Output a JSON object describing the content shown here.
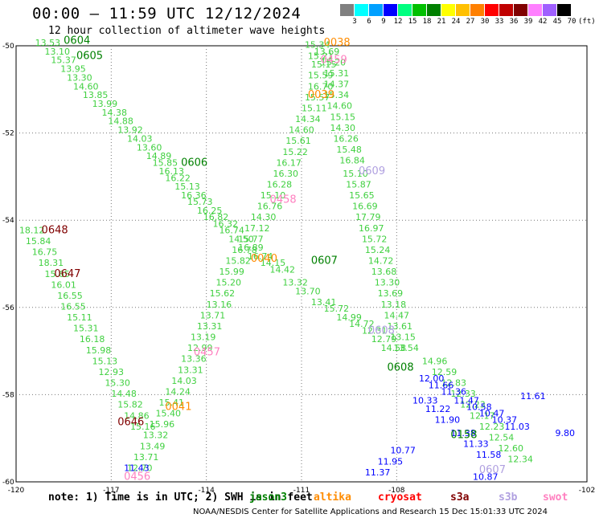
{
  "header": {
    "title": "00:00 – 11:59 UTC 12/12/2024",
    "subtitle": "12 hour collection of altimeter wave heights"
  },
  "colorbar": {
    "labels": [
      "3",
      "6",
      "9",
      "12",
      "15",
      "18",
      "21",
      "24",
      "27",
      "30",
      "33",
      "36",
      "39",
      "42",
      "45",
      "70",
      "(ft)"
    ],
    "colors": [
      "#808080",
      "#00ffff",
      "#00a0ff",
      "#0000ff",
      "#00ff7f",
      "#00c000",
      "#008000",
      "#ffff00",
      "#ffc000",
      "#ff8000",
      "#ff0000",
      "#c00000",
      "#800000",
      "#ff80ff",
      "#a060ff",
      "#000000"
    ]
  },
  "footer": {
    "note": "note: 1) Time is in UTC; 2) SWH is in feet",
    "satellites": [
      {
        "name": "jason3",
        "color": "#008000"
      },
      {
        "name": "altika",
        "color": "#ff8c00"
      },
      {
        "name": "cryosat",
        "color": "#ff0000"
      },
      {
        "name": "s3a",
        "color": "#800000"
      },
      {
        "name": "s3b",
        "color": "#b0a0e0"
      },
      {
        "name": "swot",
        "color": "#ff80c0"
      }
    ],
    "credit": "NOAA/NESDIS Center for Satellite Applications and Research   15 Dec 15:01:33 UTC 2024"
  },
  "chart_data": {
    "type": "scatter",
    "xlim": [
      -120,
      -102
    ],
    "ylim": [
      -60,
      -50
    ],
    "x_ticks": [
      -120,
      -117,
      -114,
      -111,
      -108,
      -102
    ],
    "y_ticks": [
      -50,
      -52,
      -54,
      -56,
      -58,
      -60
    ],
    "grid": true,
    "track_labels": [
      {
        "text": "0604",
        "lon": -118.5,
        "lat": -49.95,
        "color": "#008000"
      },
      {
        "text": "0605",
        "lon": -118.1,
        "lat": -50.3,
        "color": "#008000"
      },
      {
        "text": "0606",
        "lon": -114.8,
        "lat": -52.75,
        "color": "#008000"
      },
      {
        "text": "0607",
        "lon": -110.7,
        "lat": -55.0,
        "color": "#008000"
      },
      {
        "text": "0608",
        "lon": -108.3,
        "lat": -57.45,
        "color": "#008000"
      },
      {
        "text": "0038",
        "lon": -110.3,
        "lat": -50.0,
        "color": "#ff8c00"
      },
      {
        "text": "0039",
        "lon": -110.8,
        "lat": -51.2,
        "color": "#ff8c00"
      },
      {
        "text": "0040",
        "lon": -112.6,
        "lat": -54.95,
        "color": "#ff8c00"
      },
      {
        "text": "0041",
        "lon": -115.3,
        "lat": -58.35,
        "color": "#ff8c00"
      },
      {
        "text": "0459",
        "lon": -110.4,
        "lat": -50.4,
        "color": "#ff80c0"
      },
      {
        "text": "0458",
        "lon": -112.0,
        "lat": -53.6,
        "color": "#ff80c0"
      },
      {
        "text": "0457",
        "lon": -114.4,
        "lat": -57.1,
        "color": "#ff80c0"
      },
      {
        "text": "0456",
        "lon": -116.6,
        "lat": -59.95,
        "color": "#ff80c0"
      },
      {
        "text": "0609",
        "lon": -109.2,
        "lat": -52.95,
        "color": "#b0a0e0"
      },
      {
        "text": "0608",
        "lon": -108.9,
        "lat": -56.6,
        "color": "#b0a0e0"
      },
      {
        "text": "0607",
        "lon": -105.4,
        "lat": -59.8,
        "color": "#b0a0e0"
      },
      {
        "text": "0648",
        "lon": -119.2,
        "lat": -54.3,
        "color": "#800000"
      },
      {
        "text": "0647",
        "lon": -118.8,
        "lat": -55.3,
        "color": "#800000"
      },
      {
        "text": "0646",
        "lon": -116.8,
        "lat": -58.7,
        "color": "#800000"
      },
      {
        "text": "0158",
        "lon": -106.3,
        "lat": -59.0,
        "color": "#008000"
      }
    ],
    "tracks": [
      {
        "satellite": "jason3",
        "color": "#40d040",
        "points": [
          [
            -119.4,
            -50.0,
            13.53
          ],
          [
            -119.1,
            -50.2,
            13.1
          ],
          [
            -118.9,
            -50.4,
            15.37
          ],
          [
            -118.6,
            -50.6,
            13.95
          ],
          [
            -118.4,
            -50.8,
            13.3
          ],
          [
            -118.2,
            -51.0,
            14.6
          ],
          [
            -117.9,
            -51.2,
            13.85
          ],
          [
            -117.6,
            -51.4,
            13.99
          ],
          [
            -117.3,
            -51.6,
            14.38
          ],
          [
            -117.1,
            -51.8,
            14.88
          ],
          [
            -116.8,
            -52.0,
            13.92
          ],
          [
            -116.5,
            -52.2,
            14.03
          ],
          [
            -116.2,
            -52.4,
            13.6
          ],
          [
            -115.9,
            -52.6,
            14.89
          ],
          [
            -115.7,
            -52.75,
            15.85
          ],
          [
            -115.5,
            -52.95,
            16.13
          ],
          [
            -115.3,
            -53.1,
            16.22
          ],
          [
            -115.0,
            -53.3,
            15.13
          ],
          [
            -114.8,
            -53.5,
            16.36
          ],
          [
            -114.6,
            -53.65,
            15.73
          ],
          [
            -114.3,
            -53.85,
            16.25
          ],
          [
            -114.1,
            -54.0,
            16.82
          ],
          [
            -113.8,
            -54.15,
            16.32
          ],
          [
            -113.6,
            -54.3,
            16.74
          ],
          [
            -113.3,
            -54.5,
            14.5
          ],
          [
            -113.0,
            -54.7,
            16.89
          ],
          [
            -112.7,
            -54.9,
            16.74
          ],
          [
            -112.3,
            -55.05,
            14.15
          ],
          [
            -112.0,
            -55.2,
            14.42
          ],
          [
            -111.6,
            -55.5,
            13.32
          ],
          [
            -111.2,
            -55.7,
            13.7
          ],
          [
            -110.7,
            -55.95,
            13.41
          ],
          [
            -110.3,
            -56.1,
            15.72
          ],
          [
            -109.9,
            -56.3,
            14.99
          ],
          [
            -109.5,
            -56.45,
            14.72
          ],
          [
            -109.1,
            -56.6,
            12.31
          ],
          [
            -108.8,
            -56.8,
            12.79
          ],
          [
            -108.5,
            -57.0,
            14.58
          ]
        ]
      },
      {
        "satellite": "altika",
        "color": "#40d040",
        "points": [
          [
            -110.9,
            -50.05,
            15.34
          ],
          [
            -110.8,
            -50.3,
            15.21
          ],
          [
            -110.7,
            -50.5,
            15.15
          ],
          [
            -110.8,
            -50.75,
            15.59
          ],
          [
            -110.8,
            -51.0,
            16.7
          ],
          [
            -110.9,
            -51.25,
            15.57
          ],
          [
            -111.0,
            -51.5,
            15.11
          ],
          [
            -111.2,
            -51.75,
            14.34
          ],
          [
            -111.4,
            -52.0,
            14.6
          ],
          [
            -111.5,
            -52.25,
            15.61
          ],
          [
            -111.6,
            -52.5,
            15.22
          ],
          [
            -111.8,
            -52.75,
            16.17
          ],
          [
            -111.9,
            -53.0,
            16.3
          ],
          [
            -112.1,
            -53.25,
            16.28
          ],
          [
            -112.3,
            -53.5,
            15.1
          ],
          [
            -112.4,
            -53.75,
            16.76
          ],
          [
            -112.6,
            -54.0,
            14.3
          ],
          [
            -112.8,
            -54.25,
            17.12
          ],
          [
            -113.0,
            -54.5,
            15.77
          ],
          [
            -113.2,
            -54.75,
            16.78
          ],
          [
            -113.4,
            -55.0,
            15.82
          ],
          [
            -113.6,
            -55.25,
            15.99
          ],
          [
            -113.7,
            -55.5,
            15.2
          ],
          [
            -113.9,
            -55.75,
            15.62
          ],
          [
            -114.0,
            -56.0,
            13.16
          ],
          [
            -114.2,
            -56.25,
            13.71
          ],
          [
            -114.3,
            -56.5,
            13.31
          ],
          [
            -114.5,
            -56.75,
            13.19
          ],
          [
            -114.6,
            -57.0,
            12.99
          ],
          [
            -114.8,
            -57.25,
            13.36
          ],
          [
            -114.9,
            -57.5,
            13.31
          ],
          [
            -115.1,
            -57.75,
            14.03
          ],
          [
            -115.3,
            -58.0,
            14.24
          ],
          [
            -115.5,
            -58.25,
            15.41
          ],
          [
            -115.6,
            -58.5,
            15.4
          ],
          [
            -115.8,
            -58.75,
            15.96
          ],
          [
            -116.0,
            -59.0,
            13.32
          ],
          [
            -116.1,
            -59.25,
            13.49
          ],
          [
            -116.3,
            -59.5,
            13.71
          ],
          [
            -116.5,
            -59.75,
            12.7
          ]
        ]
      },
      {
        "satellite": "swot",
        "color": "#40d040",
        "points": [
          [
            -110.6,
            -50.2,
            13.69
          ],
          [
            -110.4,
            -50.45,
            15.2
          ],
          [
            -110.3,
            -50.7,
            15.31
          ],
          [
            -110.3,
            -50.95,
            14.37
          ],
          [
            -110.3,
            -51.2,
            15.34
          ],
          [
            -110.2,
            -51.45,
            14.6
          ],
          [
            -110.1,
            -51.7,
            15.15
          ],
          [
            -110.1,
            -51.95,
            14.3
          ],
          [
            -110.0,
            -52.2,
            16.26
          ],
          [
            -109.9,
            -52.45,
            15.48
          ],
          [
            -109.8,
            -52.7,
            16.84
          ],
          [
            -109.7,
            -53.0,
            15.1
          ],
          [
            -109.6,
            -53.25,
            15.87
          ],
          [
            -109.5,
            -53.5,
            15.65
          ],
          [
            -109.4,
            -53.75,
            16.69
          ],
          [
            -109.3,
            -54.0,
            17.79
          ],
          [
            -109.2,
            -54.25,
            16.97
          ],
          [
            -109.1,
            -54.5,
            15.72
          ],
          [
            -109.0,
            -54.75,
            15.24
          ],
          [
            -108.9,
            -55.0,
            14.72
          ],
          [
            -108.8,
            -55.25,
            13.68
          ],
          [
            -108.7,
            -55.5,
            13.3
          ],
          [
            -108.6,
            -55.75,
            13.69
          ],
          [
            -108.5,
            -56.0,
            13.18
          ],
          [
            -108.4,
            -56.25,
            14.47
          ],
          [
            -108.3,
            -56.5,
            13.61
          ],
          [
            -108.2,
            -56.75,
            13.15
          ],
          [
            -108.1,
            -57.0,
            13.54
          ]
        ]
      },
      {
        "satellite": "s3a",
        "color": "#40d040",
        "points": [
          [
            -119.9,
            -54.3,
            18.12
          ],
          [
            -119.7,
            -54.55,
            15.84
          ],
          [
            -119.5,
            -54.8,
            16.75
          ],
          [
            -119.3,
            -55.05,
            18.31
          ],
          [
            -119.1,
            -55.3,
            15.65
          ],
          [
            -118.9,
            -55.55,
            16.01
          ],
          [
            -118.7,
            -55.8,
            16.55
          ],
          [
            -118.6,
            -56.05,
            16.55
          ],
          [
            -118.4,
            -56.3,
            15.11
          ],
          [
            -118.2,
            -56.55,
            15.31
          ],
          [
            -118.0,
            -56.8,
            16.18
          ],
          [
            -117.8,
            -57.05,
            15.98
          ],
          [
            -117.6,
            -57.3,
            15.13
          ],
          [
            -117.4,
            -57.55,
            12.93
          ],
          [
            -117.2,
            -57.8,
            15.3
          ],
          [
            -117.0,
            -58.05,
            14.48
          ],
          [
            -116.8,
            -58.3,
            15.82
          ],
          [
            -116.6,
            -58.55,
            14.86
          ],
          [
            -116.4,
            -58.8,
            15.16
          ]
        ]
      },
      {
        "satellite": "s3b",
        "color": "#40d040",
        "points": [
          [
            -107.2,
            -57.3,
            14.96
          ],
          [
            -106.9,
            -57.55,
            12.59
          ],
          [
            -106.6,
            -57.8,
            12.83
          ],
          [
            -106.3,
            -58.05,
            12.33
          ],
          [
            -106.0,
            -58.3,
            12.23
          ],
          [
            -105.7,
            -58.55,
            12.17
          ],
          [
            -105.4,
            -58.8,
            12.23
          ],
          [
            -105.1,
            -59.05,
            12.54
          ],
          [
            -104.8,
            -59.3,
            12.6
          ],
          [
            -104.5,
            -59.55,
            12.34
          ]
        ]
      },
      {
        "satellite": "cryosat",
        "color": "#0000ff",
        "points": [
          [
            -107.3,
            -57.7,
            12.0
          ],
          [
            -107.0,
            -57.85,
            11.66
          ],
          [
            -106.6,
            -58.0,
            11.36
          ],
          [
            -106.2,
            -58.2,
            11.47
          ],
          [
            -105.8,
            -58.35,
            10.58
          ],
          [
            -105.4,
            -58.5,
            10.47
          ],
          [
            -105.0,
            -58.65,
            10.37
          ],
          [
            -104.6,
            -58.8,
            11.03
          ],
          [
            -103.0,
            -58.95,
            9.8
          ],
          [
            -104.1,
            -58.1,
            11.61
          ],
          [
            -107.5,
            -58.2,
            10.33
          ],
          [
            -107.1,
            -58.4,
            11.22
          ],
          [
            -106.8,
            -58.65,
            11.9
          ],
          [
            -106.3,
            -58.95,
            11.38
          ],
          [
            -105.9,
            -59.2,
            11.33
          ],
          [
            -105.5,
            -59.45,
            11.58
          ],
          [
            -108.2,
            -59.35,
            10.77
          ],
          [
            -108.6,
            -59.6,
            11.95
          ],
          [
            -109.0,
            -59.85,
            11.37
          ],
          [
            -116.6,
            -59.75,
            11.43
          ],
          [
            -105.6,
            -59.95,
            10.87
          ]
        ]
      }
    ]
  }
}
